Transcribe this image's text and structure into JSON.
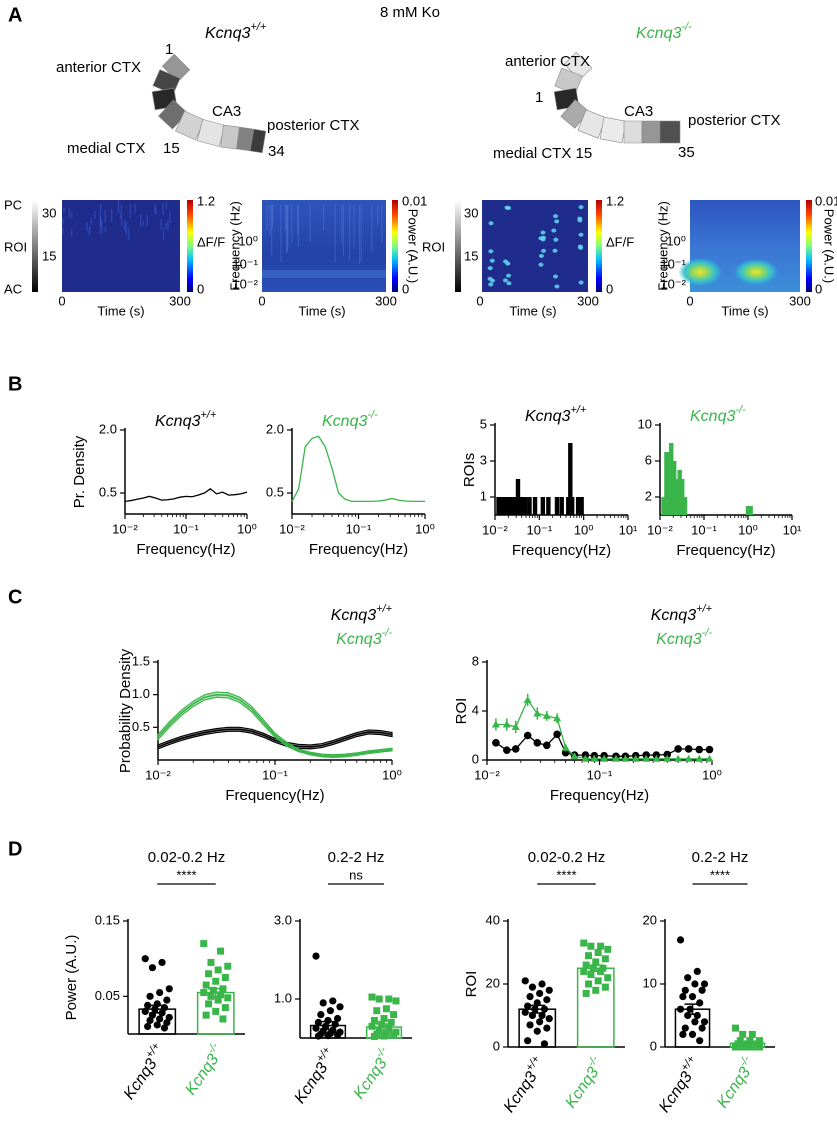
{
  "panels": [
    "A",
    "B",
    "C",
    "D"
  ],
  "panel_a": {
    "title": "8 mM Ko",
    "left": {
      "genotype": "Kcnq3+/+",
      "anterior": "anterior CTX",
      "first": "1",
      "ca3": "CA3",
      "posterior": "posterior CTX",
      "medial": "medial CTX",
      "middle": "15",
      "last": "34",
      "heatmap": {
        "top": "PC",
        "ticks": [
          "30",
          "15"
        ],
        "ylabel": "ROI",
        "bottom": "AC",
        "xticks": [
          "0",
          "300"
        ],
        "xlabel": "Time (s)",
        "cbar_max": "1.2",
        "cbar_label": "ΔF/F",
        "cbar_min": "0"
      },
      "spectrogram": {
        "ylabel": "Frequency (Hz)",
        "yticks": [
          "10⁰",
          "10⁻¹",
          "10⁻²"
        ],
        "xticks": [
          "0",
          "300"
        ],
        "xlabel": "Time (s)",
        "cbar_max": "0.01",
        "cbar_label": "Power (A.U.)",
        "cbar_min": "0"
      }
    },
    "right": {
      "genotype": "Kcnq3-/-",
      "anterior": "anterior CTX",
      "first": "1",
      "ca3": "CA3",
      "posterior": "posterior CTX",
      "medial": "medial CTX 15",
      "last": "35",
      "heatmap": {
        "ylabel": "ROI",
        "ticks": [
          "30",
          "15"
        ],
        "xticks": [
          "0",
          "300"
        ],
        "xlabel": "Time (s)",
        "cbar_max": "1.2",
        "cbar_label": "ΔF/F",
        "cbar_min": "0"
      },
      "spectrogram": {
        "ylabel": "Frequency (Hz)",
        "yticks": [
          "10⁰",
          "10⁻¹",
          "10⁻²"
        ],
        "xticks": [
          "0",
          "300"
        ],
        "xlabel": "Time (s)",
        "cbar_max": "0.01",
        "cbar_label": "Power (A.U.)",
        "cbar_min": "0"
      }
    }
  },
  "chart_data": [
    {
      "type": "line",
      "title": "Kcnq3+/+",
      "title_color": "#000000",
      "ylabel": "Pr. Density",
      "xlabel": "Frequency(Hz)",
      "xlog": true,
      "xlim": [
        0.01,
        1
      ],
      "xticks": [
        {
          "value": 0.01,
          "label": "10⁻²"
        },
        {
          "value": 0.1,
          "label": "10⁻¹"
        },
        {
          "value": 1,
          "label": "10⁰"
        }
      ],
      "ylim": [
        0,
        2
      ],
      "yticks": [
        0.5,
        {
          "value": 2,
          "label": "2.0"
        }
      ],
      "x": [
        0.01,
        0.0126,
        0.0158,
        0.02,
        0.0251,
        0.0316,
        0.0398,
        0.0501,
        0.0631,
        0.0794,
        0.1,
        0.126,
        0.158,
        0.2,
        0.251,
        0.316,
        0.398,
        0.501,
        0.631,
        0.794,
        1
      ],
      "series": [
        {
          "color": "#000000",
          "values": [
            0.3,
            0.32,
            0.35,
            0.38,
            0.42,
            0.38,
            0.33,
            0.34,
            0.36,
            0.4,
            0.42,
            0.41,
            0.45,
            0.5,
            0.6,
            0.48,
            0.52,
            0.45,
            0.46,
            0.48,
            0.52
          ]
        }
      ]
    },
    {
      "type": "line",
      "title": "Kcnq3-/-",
      "title_color": "#3ab54a",
      "xlabel": "Frequency(Hz)",
      "xlog": true,
      "xlim": [
        0.01,
        1
      ],
      "xticks": [
        {
          "value": 0.01,
          "label": "10⁻²"
        },
        {
          "value": 0.1,
          "label": "10⁻¹"
        },
        {
          "value": 1,
          "label": "10⁰"
        }
      ],
      "ylim": [
        0,
        2
      ],
      "yticks": [
        0.5,
        {
          "value": 2,
          "label": "2.0"
        }
      ],
      "x": [
        0.01,
        0.0126,
        0.0158,
        0.02,
        0.0251,
        0.0316,
        0.0398,
        0.0501,
        0.0631,
        0.0794,
        0.1,
        0.126,
        0.158,
        0.2,
        0.251,
        0.316,
        0.398,
        0.501,
        0.631,
        0.794,
        1
      ],
      "series": [
        {
          "color": "#3ab54a",
          "values": [
            0.3,
            0.6,
            1.6,
            1.8,
            1.85,
            1.6,
            1.1,
            0.5,
            0.35,
            0.3,
            0.3,
            0.3,
            0.3,
            0.31,
            0.33,
            0.37,
            0.33,
            0.31,
            0.3,
            0.3,
            0.3
          ]
        }
      ]
    },
    {
      "type": "bar",
      "title": "Kcnq3+/+",
      "title_color": "#000000",
      "ylabel": "ROIs",
      "xlabel": "Frequency(Hz)",
      "xlog": true,
      "color": "#000000",
      "xlim": [
        0.01,
        10
      ],
      "xticks": [
        {
          "value": 0.01,
          "label": "10⁻²"
        },
        {
          "value": 0.1,
          "label": "10⁻¹"
        },
        {
          "value": 1,
          "label": "10⁰"
        },
        {
          "value": 10,
          "label": "10¹"
        }
      ],
      "ylim": [
        0,
        5
      ],
      "yticks": [
        1,
        3,
        5
      ],
      "x": [
        0.012,
        0.014,
        0.017,
        0.02,
        0.024,
        0.028,
        0.033,
        0.04,
        0.048,
        0.06,
        0.08,
        0.12,
        0.16,
        0.25,
        0.32,
        0.45,
        0.5,
        0.55,
        0.75,
        0.9
      ],
      "values": [
        1,
        1,
        1,
        1,
        1,
        1,
        2,
        1,
        1,
        1,
        1,
        1,
        1,
        1,
        1,
        1,
        4,
        1,
        1,
        1
      ]
    },
    {
      "type": "bar",
      "title": "Kcnq3-/-",
      "title_color": "#3ab54a",
      "xlabel": "Frequency(Hz)",
      "xlog": true,
      "color": "#3ab54a",
      "xlim": [
        0.01,
        10
      ],
      "xticks": [
        {
          "value": 0.01,
          "label": "10⁻²"
        },
        {
          "value": 0.1,
          "label": "10⁻¹"
        },
        {
          "value": 1,
          "label": "10⁰"
        },
        {
          "value": 10,
          "label": "10¹"
        }
      ],
      "ylim": [
        0,
        10
      ],
      "yticks": [
        2,
        6,
        10
      ],
      "x": [
        0.012,
        0.014,
        0.016,
        0.018,
        0.021,
        0.024,
        0.028,
        0.032,
        0.037,
        1.0,
        1.15
      ],
      "values": [
        2,
        7,
        7,
        8,
        6,
        4,
        5,
        4,
        2,
        1,
        1
      ]
    },
    {
      "type": "line",
      "ylabel": "Probability Density",
      "xlabel": "Frequency(Hz)",
      "xlog": true,
      "legend": "upper right",
      "xlim": [
        0.01,
        1
      ],
      "xticks": [
        {
          "value": 0.01,
          "label": "10⁻²"
        },
        {
          "value": 0.1,
          "label": "10⁻¹"
        },
        {
          "value": 1,
          "label": "10⁰"
        }
      ],
      "ylim": [
        0,
        1.5
      ],
      "yticks": [
        0.5,
        {
          "value": 1,
          "label": "1.0"
        },
        1.5
      ],
      "x": [
        0.01,
        0.0126,
        0.0158,
        0.02,
        0.0251,
        0.0316,
        0.0398,
        0.0501,
        0.0631,
        0.0794,
        0.1,
        0.126,
        0.158,
        0.2,
        0.251,
        0.316,
        0.398,
        0.501,
        0.631,
        0.794,
        1
      ],
      "series": [
        {
          "name": "Kcnq3+/+",
          "color": "#000000",
          "values": [
            0.2,
            0.27,
            0.33,
            0.38,
            0.42,
            0.45,
            0.47,
            0.47,
            0.44,
            0.38,
            0.3,
            0.24,
            0.21,
            0.2,
            0.22,
            0.27,
            0.33,
            0.39,
            0.43,
            0.42,
            0.39
          ],
          "sem": [
            0.03,
            0.03,
            0.03,
            0.03,
            0.03,
            0.03,
            0.03,
            0.03,
            0.03,
            0.03,
            0.03,
            0.03,
            0.03,
            0.03,
            0.03,
            0.03,
            0.03,
            0.03,
            0.03,
            0.03,
            0.03
          ]
        },
        {
          "name": "Kcnq3-/-",
          "color": "#3ab54a",
          "values": [
            0.35,
            0.55,
            0.72,
            0.86,
            0.96,
            1.0,
            0.99,
            0.92,
            0.78,
            0.58,
            0.38,
            0.24,
            0.15,
            0.1,
            0.07,
            0.06,
            0.07,
            0.09,
            0.12,
            0.14,
            0.16
          ],
          "sem": [
            0.04,
            0.04,
            0.04,
            0.04,
            0.04,
            0.04,
            0.04,
            0.04,
            0.04,
            0.04,
            0.03,
            0.03,
            0.02,
            0.02,
            0.02,
            0.02,
            0.02,
            0.02,
            0.02,
            0.02,
            0.02
          ]
        }
      ]
    },
    {
      "type": "line",
      "ylabel": "ROI",
      "xlabel": "Frequency(Hz)",
      "xlog": true,
      "legend": "upper right",
      "xlim": [
        0.01,
        1
      ],
      "xticks": [
        {
          "value": 0.01,
          "label": "10⁻²"
        },
        {
          "value": 0.1,
          "label": "10⁻¹"
        },
        {
          "value": 1,
          "label": "10⁰"
        }
      ],
      "ylim": [
        0,
        8
      ],
      "yticks": [
        0,
        4,
        8
      ],
      "x": [
        0.012,
        0.015,
        0.018,
        0.023,
        0.028,
        0.034,
        0.042,
        0.05,
        0.06,
        0.075,
        0.09,
        0.11,
        0.14,
        0.17,
        0.21,
        0.26,
        0.32,
        0.4,
        0.5,
        0.62,
        0.77,
        0.95
      ],
      "series": [
        {
          "name": "Kcnq3+/+",
          "color": "#000000",
          "marker": "circle",
          "values": [
            1.4,
            0.8,
            0.9,
            2.0,
            1.4,
            1.2,
            2.1,
            0.6,
            0.4,
            0.4,
            0.35,
            0.35,
            0.3,
            0.3,
            0.35,
            0.4,
            0.4,
            0.45,
            0.9,
            0.9,
            0.85,
            0.85
          ],
          "errors": [
            0.3,
            0.2,
            0.2,
            0.3,
            0.3,
            0.3,
            0.3,
            0.2,
            0.15,
            0.15,
            0.15,
            0.15,
            0.15,
            0.15,
            0.15,
            0.15,
            0.15,
            0.15,
            0.25,
            0.25,
            0.25,
            0.25
          ]
        },
        {
          "name": "Kcnq3-/-",
          "color": "#3ab54a",
          "marker": "triangle",
          "values": [
            2.9,
            2.9,
            2.7,
            4.9,
            3.8,
            3.6,
            3.4,
            1.0,
            0.3,
            0.1,
            0.1,
            0.1,
            0.1,
            0.1,
            0.1,
            0.1,
            0.1,
            0.1,
            0.1,
            0.1,
            0.1,
            0.1
          ],
          "errors": [
            0.5,
            0.5,
            0.5,
            0.5,
            0.5,
            0.4,
            0.4,
            0.3,
            0.1,
            0.05,
            0.05,
            0.05,
            0.05,
            0.05,
            0.05,
            0.05,
            0.05,
            0.05,
            0.05,
            0.05,
            0.05,
            0.05
          ]
        }
      ]
    },
    {
      "type": "dotbar",
      "title": "0.02-0.2 Hz",
      "annotation": "****",
      "ylabel": "Power (A.U.)",
      "categories": [
        "Kcnq3+/+",
        "Kcnq3-/-"
      ],
      "colors": [
        "#000000",
        "#3ab54a"
      ],
      "markers": [
        "circle",
        "square"
      ],
      "ylim": [
        0,
        0.15
      ],
      "yticks": [
        0.05,
        0.15
      ],
      "values": [
        0.033,
        0.055
      ],
      "errors": [
        0.005,
        0.005
      ],
      "points": [
        [
          0.1,
          0.095,
          0.088,
          0.06,
          0.055,
          0.05,
          0.045,
          0.04,
          0.038,
          0.035,
          0.033,
          0.03,
          0.028,
          0.025,
          0.022,
          0.02,
          0.018,
          0.015,
          0.012,
          0.01,
          0.008
        ],
        [
          0.12,
          0.11,
          0.095,
          0.09,
          0.085,
          0.08,
          0.075,
          0.07,
          0.065,
          0.06,
          0.058,
          0.055,
          0.052,
          0.05,
          0.048,
          0.045,
          0.04,
          0.035,
          0.03,
          0.025,
          0.02
        ]
      ]
    },
    {
      "type": "dotbar",
      "title": "0.2-2 Hz",
      "annotation": "ns",
      "categories": [
        "Kcnq3+/+",
        "Kcnq3-/-"
      ],
      "colors": [
        "#000000",
        "#3ab54a"
      ],
      "markers": [
        "circle",
        "square"
      ],
      "ylim": [
        0,
        3
      ],
      "yticks": [
        {
          "value": 1,
          "label": "1.0"
        },
        {
          "value": 3,
          "label": "3.0"
        }
      ],
      "values": [
        0.32,
        0.28
      ],
      "errors": [
        0.1,
        0.08
      ],
      "points": [
        [
          2.1,
          0.95,
          0.9,
          0.8,
          0.7,
          0.6,
          0.5,
          0.45,
          0.4,
          0.35,
          0.3,
          0.25,
          0.2,
          0.18,
          0.15,
          0.12,
          0.1,
          0.08,
          0.06,
          0.05
        ],
        [
          1.05,
          1.0,
          1.0,
          0.95,
          0.75,
          0.7,
          0.6,
          0.5,
          0.45,
          0.4,
          0.35,
          0.3,
          0.25,
          0.2,
          0.15,
          0.12,
          0.1,
          0.08,
          0.05,
          0.04
        ]
      ]
    },
    {
      "type": "dotbar",
      "title": "0.02-0.2 Hz",
      "annotation": "****",
      "ylabel": "ROI",
      "categories": [
        "Kcnq3+/+",
        "Kcnq3-/-"
      ],
      "colors": [
        "#000000",
        "#3ab54a"
      ],
      "markers": [
        "circle",
        "square"
      ],
      "ylim": [
        0,
        40
      ],
      "yticks": [
        0,
        20,
        40
      ],
      "values": [
        12,
        25
      ],
      "errors": [
        1.2,
        1
      ],
      "points": [
        [
          21,
          20,
          19,
          18,
          17,
          16,
          15,
          14,
          13,
          12,
          12,
          11,
          10,
          10,
          9,
          8,
          7,
          6,
          5,
          2,
          1
        ],
        [
          33,
          32,
          32,
          31,
          30,
          29,
          28,
          27,
          26,
          25,
          25,
          24,
          24,
          23,
          22,
          21,
          20,
          19,
          18,
          17
        ]
      ]
    },
    {
      "type": "dotbar",
      "title": "0.2-2 Hz",
      "annotation": "****",
      "categories": [
        "Kcnq3+/+",
        "Kcnq3-/-"
      ],
      "colors": [
        "#000000",
        "#3ab54a"
      ],
      "markers": [
        "circle",
        "square"
      ],
      "ylim": [
        0,
        20
      ],
      "yticks": [
        0,
        10,
        20
      ],
      "values": [
        6,
        0.6
      ],
      "errors": [
        0.8,
        0.2
      ],
      "points": [
        [
          17,
          12,
          11,
          10,
          10,
          9,
          9,
          8,
          8,
          7,
          6,
          6,
          5,
          5,
          4,
          4,
          3,
          3,
          2,
          2,
          1
        ],
        [
          3,
          2,
          2,
          1,
          1,
          1,
          0.5,
          0.5,
          0.5,
          0,
          0,
          0,
          0,
          0,
          0,
          0,
          0,
          0
        ]
      ]
    }
  ]
}
